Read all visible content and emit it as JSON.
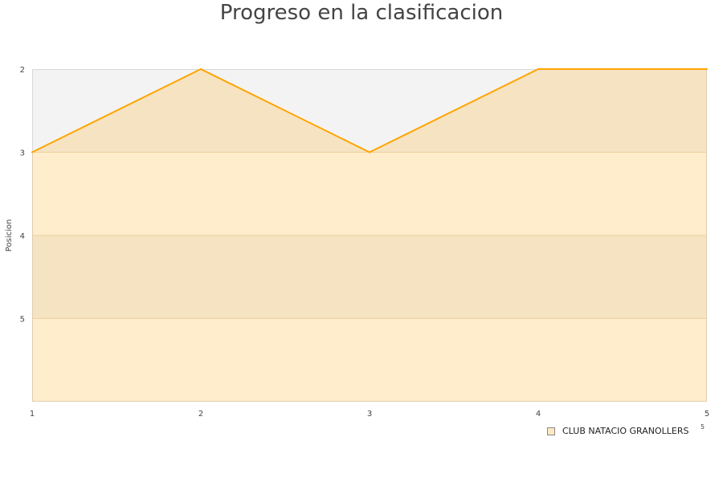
{
  "chart_data": {
    "type": "area",
    "title": "Progreso en la clasificacion",
    "xlabel": "",
    "ylabel": "Posicion",
    "x": [
      1,
      2,
      3,
      4,
      5
    ],
    "series": [
      {
        "name": "CLUB NATACIO GRANOLLERS",
        "values": [
          3,
          2,
          3,
          2,
          2
        ],
        "color": "#ffa500"
      }
    ],
    "ylim": [
      2,
      6
    ],
    "y_inverted": true,
    "xlim": [
      1,
      5
    ],
    "x_ticks": [
      "1",
      "2",
      "3",
      "4",
      "5"
    ],
    "y_ticks": [
      "2",
      "3",
      "4",
      "5"
    ],
    "grid": true,
    "legend_position": "bottom-right",
    "legend_extra": "5"
  }
}
